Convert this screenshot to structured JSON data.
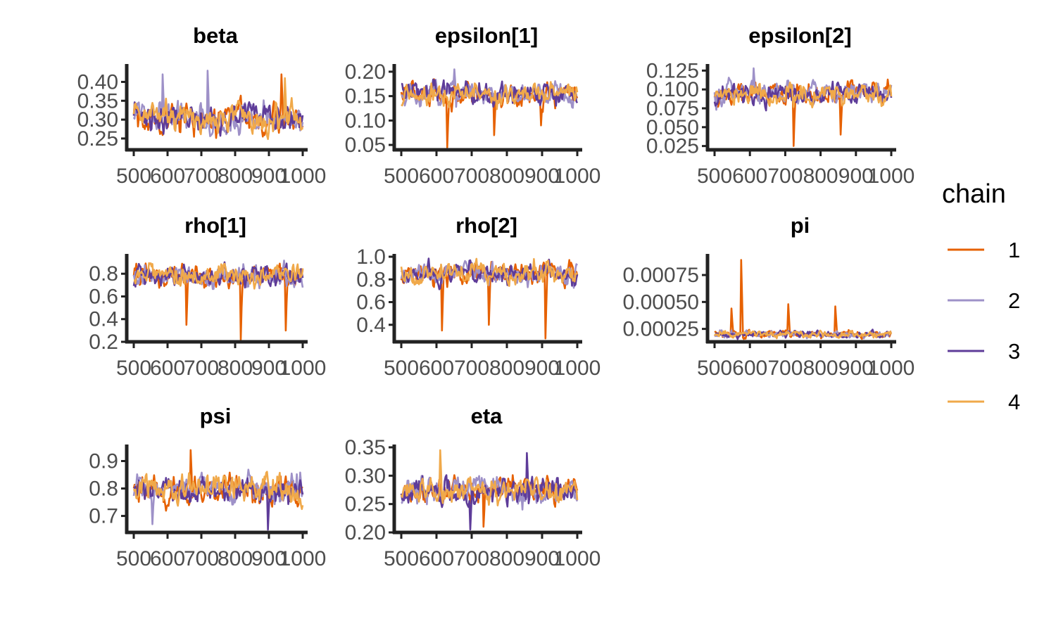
{
  "chart_data": {
    "type": "line",
    "legend": {
      "title": "chain",
      "position": "right"
    },
    "series": [
      {
        "name": "1",
        "color": "#E66101"
      },
      {
        "name": "2",
        "color": "#9E91C8"
      },
      {
        "name": "3",
        "color": "#5E3C99"
      },
      {
        "name": "4",
        "color": "#F0A94A"
      }
    ],
    "x_range": [
      500,
      1000
    ],
    "x_ticks": [
      500,
      600,
      700,
      800,
      900,
      1000
    ],
    "x_tick_labels": [
      "500",
      "600",
      "700",
      "800",
      "900",
      "1000"
    ],
    "grid": false,
    "panels": [
      {
        "title": "beta",
        "ylim": [
          0.22,
          0.44
        ],
        "y_ticks": [
          0.25,
          0.3,
          0.35,
          0.4
        ],
        "y_tick_labels": [
          "0.25",
          "0.30",
          "0.35",
          "0.40"
        ],
        "center": 0.305,
        "spread": 0.035,
        "spikes": [
          [
            0.42,
            1
          ],
          [
            0.43,
            1
          ],
          [
            0.41,
            3
          ],
          [
            0.42,
            0
          ]
        ]
      },
      {
        "title": "epsilon[1]",
        "ylim": [
          0.04,
          0.21
        ],
        "y_ticks": [
          0.05,
          0.1,
          0.15,
          0.2
        ],
        "y_tick_labels": [
          "0.05",
          "0.10",
          "0.15",
          "0.20"
        ],
        "center": 0.155,
        "spread": 0.022,
        "spikes": [
          [
            0.045,
            0
          ],
          [
            0.07,
            0
          ],
          [
            0.09,
            0
          ],
          [
            0.205,
            1
          ]
        ]
      },
      {
        "title": "epsilon[2]",
        "ylim": [
          0.02,
          0.13
        ],
        "y_ticks": [
          0.025,
          0.05,
          0.075,
          0.1,
          0.125
        ],
        "y_tick_labels": [
          "0.025",
          "0.050",
          "0.075",
          "0.100",
          "0.125"
        ],
        "center": 0.095,
        "spread": 0.014,
        "spikes": [
          [
            0.025,
            0
          ],
          [
            0.04,
            0
          ],
          [
            0.128,
            1
          ]
        ]
      },
      {
        "title": "rho[1]",
        "ylim": [
          0.2,
          0.95
        ],
        "y_ticks": [
          0.2,
          0.4,
          0.6,
          0.8
        ],
        "y_tick_labels": [
          "0.2",
          "0.4",
          "0.6",
          "0.8"
        ],
        "center": 0.78,
        "spread": 0.09,
        "spikes": [
          [
            0.22,
            0
          ],
          [
            0.3,
            0
          ],
          [
            0.35,
            0
          ]
        ]
      },
      {
        "title": "rho[2]",
        "ylim": [
          0.25,
          1.0
        ],
        "y_ticks": [
          0.4,
          0.6,
          0.8,
          1.0
        ],
        "y_tick_labels": [
          "0.4",
          "0.6",
          "0.8",
          "1.0"
        ],
        "center": 0.85,
        "spread": 0.09,
        "spikes": [
          [
            0.28,
            0
          ],
          [
            0.35,
            0
          ],
          [
            0.4,
            0
          ]
        ]
      },
      {
        "title": "pi",
        "ylim": [
          0.00013,
          0.00092
        ],
        "y_ticks": [
          0.00025,
          0.0005,
          0.00075
        ],
        "y_tick_labels": [
          "0.00025",
          "0.00050",
          "0.00075"
        ],
        "center": 0.0002,
        "spread": 3e-05,
        "spikes": [
          [
            0.00089,
            0
          ],
          [
            0.00048,
            0
          ],
          [
            0.00046,
            0
          ],
          [
            0.00044,
            0
          ]
        ]
      },
      {
        "title": "psi",
        "ylim": [
          0.64,
          0.95
        ],
        "y_ticks": [
          0.7,
          0.8,
          0.9
        ],
        "y_tick_labels": [
          "0.7",
          "0.8",
          "0.9"
        ],
        "center": 0.795,
        "spread": 0.045,
        "spikes": [
          [
            0.94,
            0
          ],
          [
            0.65,
            2
          ],
          [
            0.67,
            1
          ]
        ]
      },
      {
        "title": "eta",
        "ylim": [
          0.2,
          0.35
        ],
        "y_ticks": [
          0.2,
          0.25,
          0.3,
          0.35
        ],
        "y_tick_labels": [
          "0.20",
          "0.25",
          "0.30",
          "0.35"
        ],
        "center": 0.272,
        "spread": 0.022,
        "spikes": [
          [
            0.34,
            2
          ],
          [
            0.345,
            3
          ],
          [
            0.205,
            2
          ],
          [
            0.21,
            0
          ]
        ]
      }
    ]
  }
}
